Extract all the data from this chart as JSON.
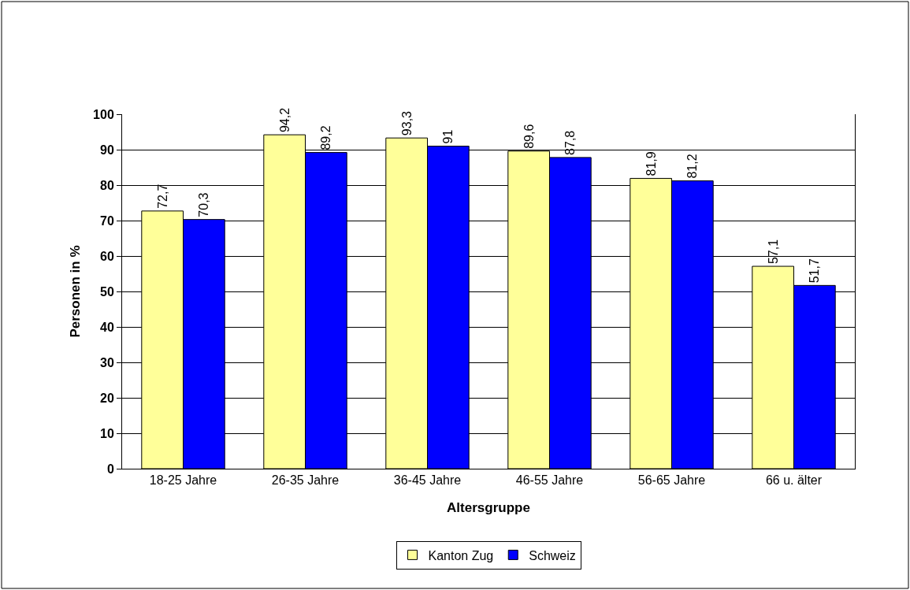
{
  "chart_data": {
    "type": "bar",
    "xlabel": "Altersgruppe",
    "ylabel": "Personen in %",
    "categories": [
      "18-25 Jahre",
      "26-35 Jahre",
      "36-45 Jahre",
      "46-55 Jahre",
      "56-65 Jahre",
      "66 u. älter"
    ],
    "series": [
      {
        "name": "Kanton Zug",
        "color": "#ffff99",
        "values": [
          72.7,
          94.2,
          93.3,
          89.6,
          81.9,
          57.1
        ],
        "value_labels": [
          "72,7",
          "94,2",
          "93,3",
          "89,6",
          "81,9",
          "57,1"
        ]
      },
      {
        "name": "Schweiz",
        "color": "#0000ff",
        "values": [
          70.3,
          89.2,
          91,
          87.8,
          81.2,
          51.7
        ],
        "value_labels": [
          "70,3",
          "89,2",
          "91",
          "87,8",
          "81,2",
          "51,7"
        ]
      }
    ],
    "ylim": [
      0,
      100
    ],
    "yticks": [
      0,
      10,
      20,
      30,
      40,
      50,
      60,
      70,
      80,
      90,
      100
    ],
    "grid": "y",
    "legend": "bottom"
  }
}
